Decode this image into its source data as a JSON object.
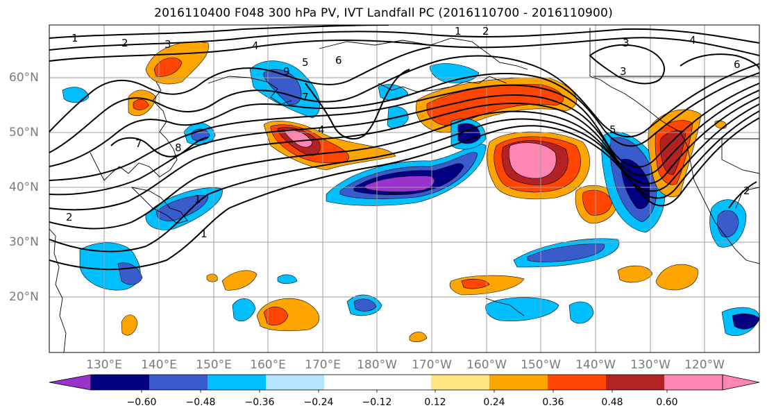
{
  "title": "2016110400 F048 300 hPa PV, IVT Landfall PC (2016110700 - 2016110900)",
  "latitude_labels": [
    "60°N",
    "50°N",
    "40°N",
    "30°N",
    "20°N"
  ],
  "longitude_labels": [
    "130°E",
    "140°E",
    "150°E",
    "160°E",
    "170°E",
    "180°W",
    "170°W",
    "160°W",
    "150°W",
    "140°W",
    "130°W",
    "120°W"
  ],
  "contour_labels": [
    "1",
    "2",
    "3",
    "4",
    "5",
    "6",
    "7",
    "8",
    "9",
    "2",
    "3",
    "4",
    "1",
    "2",
    "3",
    "4",
    "5",
    "6",
    "7",
    "1",
    "1",
    "2"
  ],
  "colorbar": {
    "tick_labels": [
      "−0.60",
      "−0.48",
      "−0.36",
      "−0.24",
      "−0.12",
      "0.12",
      "0.24",
      "0.36",
      "0.48",
      "0.60"
    ],
    "colors": [
      "#9933cc",
      "#000080",
      "#3a5bcc",
      "#00bfff",
      "#b3e5ff",
      "#ffffff",
      "#ffe680",
      "#ffa500",
      "#ff4500",
      "#b22222",
      "#ff85b3"
    ]
  },
  "colors": {
    "grid": "#9e9e9e",
    "contour": "#000000",
    "axis_label": "#7a7a7a"
  }
}
